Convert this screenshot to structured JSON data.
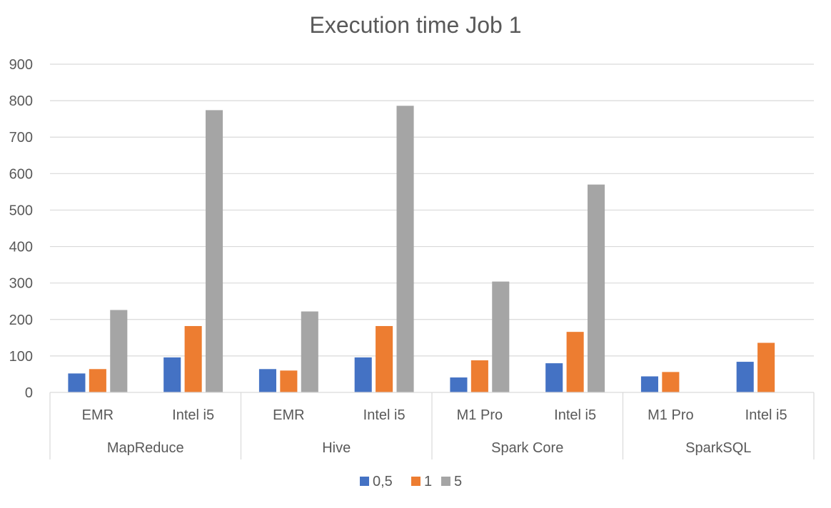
{
  "chart_data": {
    "type": "bar",
    "title": "Execution time Job 1",
    "xlabel": "",
    "ylabel": "",
    "ylim": [
      0,
      900
    ],
    "yticks": [
      "0",
      "100",
      "200",
      "300",
      "400",
      "500",
      "600",
      "700",
      "800",
      "900"
    ],
    "grid": true,
    "legend_position": "bottom",
    "groups": [
      {
        "label": "MapReduce",
        "categories": [
          "EMR",
          "Intel i5"
        ]
      },
      {
        "label": "Hive",
        "categories": [
          "EMR",
          "Intel i5"
        ]
      },
      {
        "label": "Spark Core",
        "categories": [
          "M1 Pro",
          "Intel i5"
        ]
      },
      {
        "label": "SparkSQL",
        "categories": [
          "M1 Pro",
          "Intel i5"
        ]
      }
    ],
    "categories": [
      "EMR",
      "Intel i5",
      "EMR",
      "Intel i5",
      "M1 Pro",
      "Intel i5",
      "M1 Pro",
      "Intel i5"
    ],
    "series": [
      {
        "name": "0,5",
        "color": "#4472c4",
        "values": [
          52,
          96,
          64,
          96,
          41,
          80,
          44,
          84
        ]
      },
      {
        "name": "1",
        "color": "#ed7d31",
        "values": [
          64,
          182,
          60,
          182,
          88,
          166,
          56,
          136
        ]
      },
      {
        "name": "5",
        "color": "#a5a5a5",
        "values": [
          226,
          774,
          222,
          786,
          304,
          570,
          null,
          null
        ]
      }
    ]
  }
}
